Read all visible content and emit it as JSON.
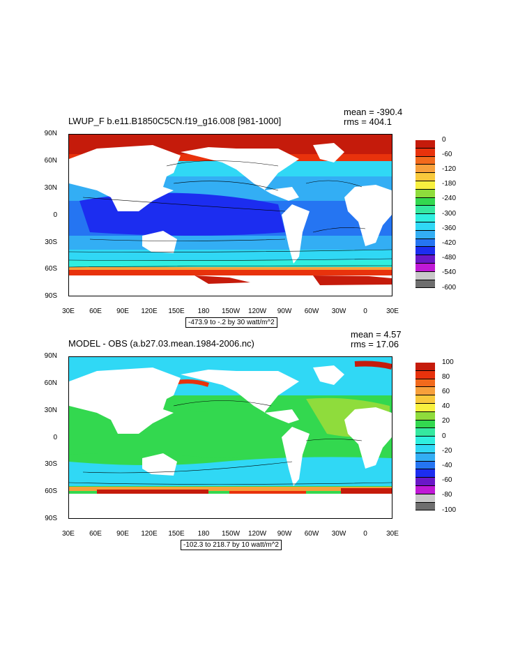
{
  "panels": [
    {
      "title": "LWUP_F b.e11.B1850C5CN.f19_g16.008 [981-1000]",
      "mean": "mean = -390.4",
      "rms": "rms = 404.1",
      "note": "-473.9 to -.2 by 30 watt/m^2",
      "lat_labels": [
        "90N",
        "60N",
        "30N",
        "0",
        "30S",
        "60S",
        "90S"
      ],
      "lon_labels": [
        "30E",
        "60E",
        "90E",
        "120E",
        "150E",
        "180",
        "150W",
        "120W",
        "90W",
        "60W",
        "30W",
        "0",
        "30E"
      ],
      "colorbar_labels": [
        "0",
        "-60",
        "-120",
        "-180",
        "-240",
        "-300",
        "-360",
        "-420",
        "-480",
        "-540",
        "-600"
      ],
      "colors": [
        "#c51b0b",
        "#e8320c",
        "#f26a1c",
        "#f7a03b",
        "#f8c93c",
        "#f7f03f",
        "#8fdc3c",
        "#33d84f",
        "#35e8a0",
        "#2fefdf",
        "#30d8f5",
        "#33aef4",
        "#2575f2",
        "#1c2df0",
        "#6a17c8",
        "#c019d6",
        "#c8c8c8",
        "#6e6e6e"
      ]
    },
    {
      "title": "MODEL - OBS (a.b27.03.mean.1984-2006.nc)",
      "mean": "mean = 4.57",
      "rms": "rms = 17.06",
      "note": "-102.3 to 218.7 by 10 watt/m^2",
      "lat_labels": [
        "90N",
        "60N",
        "30N",
        "0",
        "30S",
        "60S",
        "90S"
      ],
      "lon_labels": [
        "30E",
        "60E",
        "90E",
        "120E",
        "150E",
        "180",
        "150W",
        "120W",
        "90W",
        "60W",
        "30W",
        "0",
        "30E"
      ],
      "colorbar_labels": [
        "100",
        "80",
        "60",
        "40",
        "20",
        "0",
        "-20",
        "-40",
        "-60",
        "-80",
        "-100"
      ],
      "colors": [
        "#c51b0b",
        "#e8320c",
        "#f26a1c",
        "#f7a03b",
        "#f8c93c",
        "#f7f03f",
        "#8fdc3c",
        "#33d84f",
        "#35e8a0",
        "#2fefdf",
        "#30d8f5",
        "#33aef4",
        "#2575f2",
        "#1c2df0",
        "#6a17c8",
        "#c019d6",
        "#c8c8c8",
        "#6e6e6e"
      ]
    }
  ]
}
